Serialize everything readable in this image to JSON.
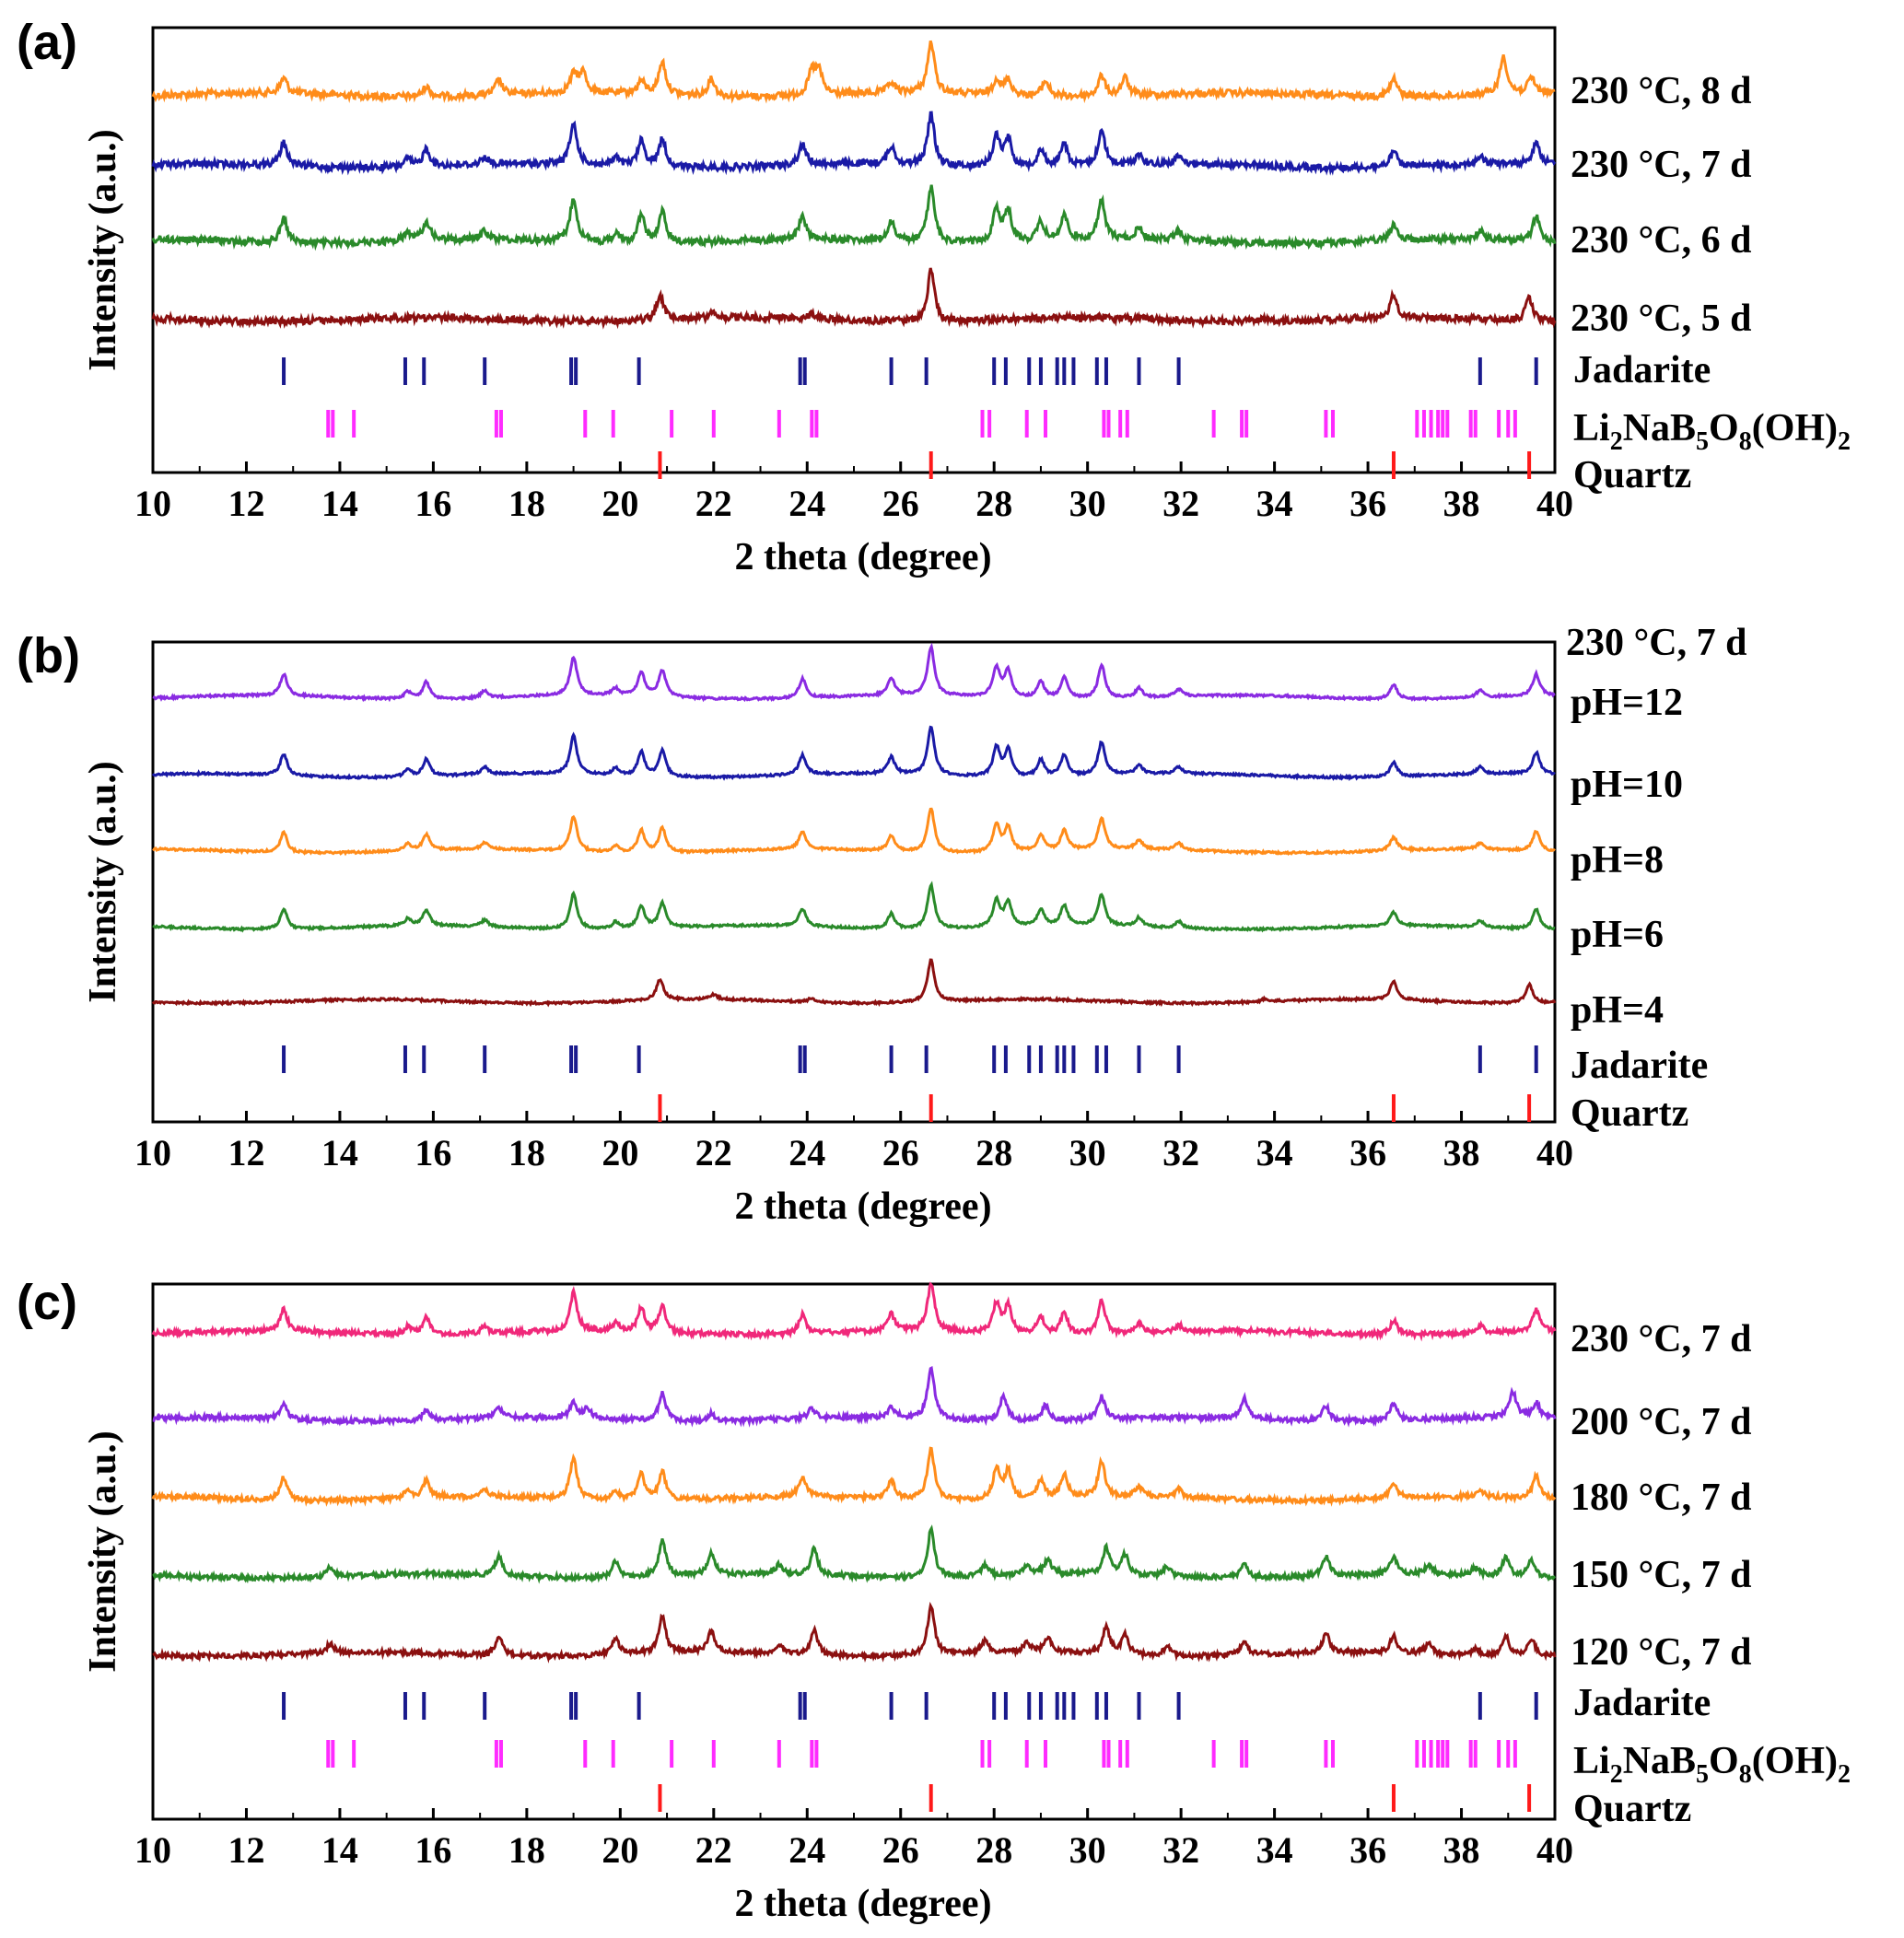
{
  "chart_data": [
    {
      "panel": "(a)",
      "type": "line",
      "xlabel": "2 theta (degree)",
      "ylabel": "Intensity (a.u.)",
      "xlim": [
        10,
        40
      ],
      "xticks": [
        10,
        12,
        14,
        16,
        18,
        20,
        22,
        24,
        26,
        28,
        30,
        32,
        34,
        36,
        38,
        40
      ],
      "series": [
        {
          "name": "230 °C, 8 d",
          "color": "#ff8c1a",
          "phase": "mix_a8"
        },
        {
          "name": "230 °C, 7 d",
          "color": "#1a1aa6",
          "phase": "jadarite"
        },
        {
          "name": "230 °C, 6 d",
          "color": "#2a8a2a",
          "phase": "jadarite"
        },
        {
          "name": "230 °C, 5 d",
          "color": "#8b1010",
          "phase": "quartz"
        }
      ],
      "reference_labels": {
        "jadarite": "Jadarite",
        "li_borate": {
          "a": "Li",
          "b": "2",
          "c": "NaB",
          "d": "5",
          "e": "O",
          "f": "8",
          "g": "(OH)",
          "h": "2"
        },
        "quartz": "Quartz"
      }
    },
    {
      "panel": "(b)",
      "type": "line",
      "xlabel": "2 theta (degree)",
      "ylabel": "Intensity (a.u.)",
      "xlim": [
        10,
        40
      ],
      "xticks": [
        10,
        12,
        14,
        16,
        18,
        20,
        22,
        24,
        26,
        28,
        30,
        32,
        34,
        36,
        38,
        40
      ],
      "header": "230 °C, 7 d",
      "series": [
        {
          "name": "pH=12",
          "color": "#8a2be2",
          "phase": "jadarite"
        },
        {
          "name": "pH=10",
          "color": "#1a1aa6",
          "phase": "jadarite"
        },
        {
          "name": "pH=8",
          "color": "#ff8c1a",
          "phase": "jadarite"
        },
        {
          "name": "pH=6",
          "color": "#2a8a2a",
          "phase": "jadarite"
        },
        {
          "name": "pH=4",
          "color": "#8b1010",
          "phase": "quartz"
        }
      ],
      "reference_labels": {
        "jadarite": "Jadarite",
        "quartz": "Quartz"
      }
    },
    {
      "panel": "(c)",
      "type": "line",
      "xlabel": "2 theta (degree)",
      "ylabel": "Intensity (a.u.)",
      "xlim": [
        10,
        40
      ],
      "xticks": [
        10,
        12,
        14,
        16,
        18,
        20,
        22,
        24,
        26,
        28,
        30,
        32,
        34,
        36,
        38,
        40
      ],
      "series": [
        {
          "name": "230 °C, 7 d",
          "color": "#f0287a",
          "phase": "jadarite"
        },
        {
          "name": "200 °C, 7 d",
          "color": "#8a2be2",
          "phase": "mix_c200"
        },
        {
          "name": "180 °C, 7 d",
          "color": "#ff8c1a",
          "phase": "jadarite"
        },
        {
          "name": "150 °C, 7 d",
          "color": "#2a8a2a",
          "phase": "li_borate"
        },
        {
          "name": "120 °C, 7 d",
          "color": "#8b1010",
          "phase": "li_borate"
        }
      ],
      "reference_labels": {
        "jadarite": "Jadarite",
        "li_borate": {
          "a": "Li",
          "b": "2",
          "c": "NaB",
          "d": "5",
          "e": "O",
          "f": "8",
          "g": "(OH)",
          "h": "2"
        },
        "quartz": "Quartz"
      }
    }
  ],
  "reference_positions": {
    "jadarite": [
      12.8,
      15.4,
      15.8,
      17.1,
      18.95,
      19.05,
      20.4,
      23.85,
      23.95,
      25.8,
      26.55,
      28.0,
      28.25,
      28.75,
      29.0,
      29.35,
      29.5,
      29.7,
      30.2,
      30.4,
      31.1,
      31.95,
      38.4,
      39.6
    ],
    "li_borate": [
      13.75,
      13.85,
      14.3,
      17.35,
      17.45,
      19.25,
      19.85,
      21.1,
      22.0,
      23.4,
      24.1,
      24.2,
      27.75,
      27.9,
      28.7,
      29.1,
      30.35,
      30.45,
      30.7,
      30.85,
      32.7,
      33.3,
      33.4,
      35.1,
      35.25,
      37.05,
      37.2,
      37.35,
      37.5,
      37.6,
      37.7,
      38.2,
      38.3,
      38.8,
      39.0,
      39.15
    ],
    "quartz": [
      20.85,
      26.65,
      36.55,
      39.45
    ]
  },
  "peaks": {
    "jadarite": [
      [
        12.8,
        0.45
      ],
      [
        15.45,
        0.15
      ],
      [
        15.85,
        0.35
      ],
      [
        17.1,
        0.15
      ],
      [
        19.0,
        0.8
      ],
      [
        19.9,
        0.15
      ],
      [
        20.45,
        0.5
      ],
      [
        20.9,
        0.55
      ],
      [
        23.9,
        0.4
      ],
      [
        25.8,
        0.35
      ],
      [
        26.65,
        1.0
      ],
      [
        28.05,
        0.6
      ],
      [
        28.3,
        0.55
      ],
      [
        29.0,
        0.35
      ],
      [
        29.5,
        0.45
      ],
      [
        30.3,
        0.7
      ],
      [
        31.1,
        0.2
      ],
      [
        31.95,
        0.15
      ],
      [
        36.55,
        0.3
      ],
      [
        38.4,
        0.15
      ],
      [
        39.6,
        0.45
      ]
    ],
    "li_borate": [
      [
        13.8,
        0.2
      ],
      [
        17.4,
        0.4
      ],
      [
        19.9,
        0.35
      ],
      [
        20.9,
        0.75
      ],
      [
        21.95,
        0.45
      ],
      [
        23.4,
        0.2
      ],
      [
        24.15,
        0.55
      ],
      [
        26.65,
        1.0
      ],
      [
        27.8,
        0.25
      ],
      [
        28.7,
        0.2
      ],
      [
        29.15,
        0.3
      ],
      [
        30.4,
        0.55
      ],
      [
        30.8,
        0.4
      ],
      [
        31.7,
        0.2
      ],
      [
        33.35,
        0.3
      ],
      [
        35.1,
        0.4
      ],
      [
        36.55,
        0.35
      ],
      [
        37.3,
        0.2
      ],
      [
        38.3,
        0.15
      ],
      [
        38.95,
        0.4
      ],
      [
        39.5,
        0.35
      ]
    ],
    "quartz": [
      [
        20.85,
        0.5
      ],
      [
        22.0,
        0.12
      ],
      [
        24.1,
        0.1
      ],
      [
        26.65,
        1.0
      ],
      [
        33.8,
        0.06
      ],
      [
        36.55,
        0.45
      ],
      [
        39.45,
        0.45
      ]
    ],
    "mix_a8": [
      [
        12.8,
        0.3
      ],
      [
        15.85,
        0.2
      ],
      [
        17.4,
        0.3
      ],
      [
        19.0,
        0.35
      ],
      [
        19.2,
        0.4
      ],
      [
        20.45,
        0.25
      ],
      [
        20.9,
        0.65
      ],
      [
        21.95,
        0.35
      ],
      [
        24.1,
        0.45
      ],
      [
        24.25,
        0.45
      ],
      [
        25.8,
        0.2
      ],
      [
        26.65,
        1.0
      ],
      [
        28.05,
        0.3
      ],
      [
        28.3,
        0.3
      ],
      [
        29.1,
        0.3
      ],
      [
        30.3,
        0.4
      ],
      [
        30.8,
        0.35
      ],
      [
        36.55,
        0.35
      ],
      [
        38.9,
        0.75
      ],
      [
        39.5,
        0.3
      ]
    ],
    "mix_c200": [
      [
        12.8,
        0.3
      ],
      [
        15.85,
        0.2
      ],
      [
        17.4,
        0.2
      ],
      [
        19.0,
        0.3
      ],
      [
        19.3,
        0.2
      ],
      [
        20.9,
        0.55
      ],
      [
        21.95,
        0.15
      ],
      [
        24.1,
        0.2
      ],
      [
        25.8,
        0.2
      ],
      [
        26.65,
        1.0
      ],
      [
        28.2,
        0.5
      ],
      [
        29.1,
        0.3
      ],
      [
        30.3,
        0.45
      ],
      [
        33.35,
        0.4
      ],
      [
        35.1,
        0.3
      ],
      [
        36.55,
        0.35
      ],
      [
        39.1,
        0.5
      ],
      [
        39.6,
        0.3
      ]
    ]
  }
}
